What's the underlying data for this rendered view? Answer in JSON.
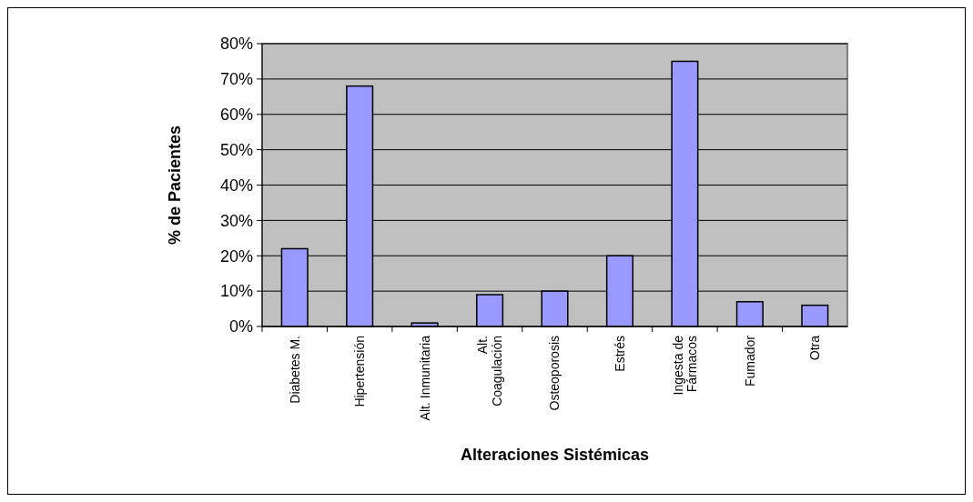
{
  "chart_data": {
    "type": "bar",
    "xlabel": "Alteraciones Sistémicas",
    "ylabel": "% de Pacientes",
    "categories": [
      "Diabetes M.",
      "Hipertensión",
      "Alt. Inmunitaria",
      "Alt.\nCoagulación",
      "Osteoporosis",
      "Estrés",
      "Ingesta de\nFármacos",
      "Fumador",
      "Otra"
    ],
    "values": [
      22,
      68,
      1,
      9,
      10,
      20,
      75,
      7,
      6
    ],
    "color": "#9999ff",
    "ylim": [
      0,
      80
    ],
    "yticks": [
      {
        "value": 0,
        "label": "0%"
      },
      {
        "value": 10,
        "label": "10%"
      },
      {
        "value": 20,
        "label": "20%"
      },
      {
        "value": 30,
        "label": "30%"
      },
      {
        "value": 40,
        "label": "40%"
      },
      {
        "value": 50,
        "label": "50%"
      },
      {
        "value": 60,
        "label": "60%"
      },
      {
        "value": 70,
        "label": "70%"
      },
      {
        "value": 80,
        "label": "80%"
      }
    ],
    "grid": "y"
  }
}
